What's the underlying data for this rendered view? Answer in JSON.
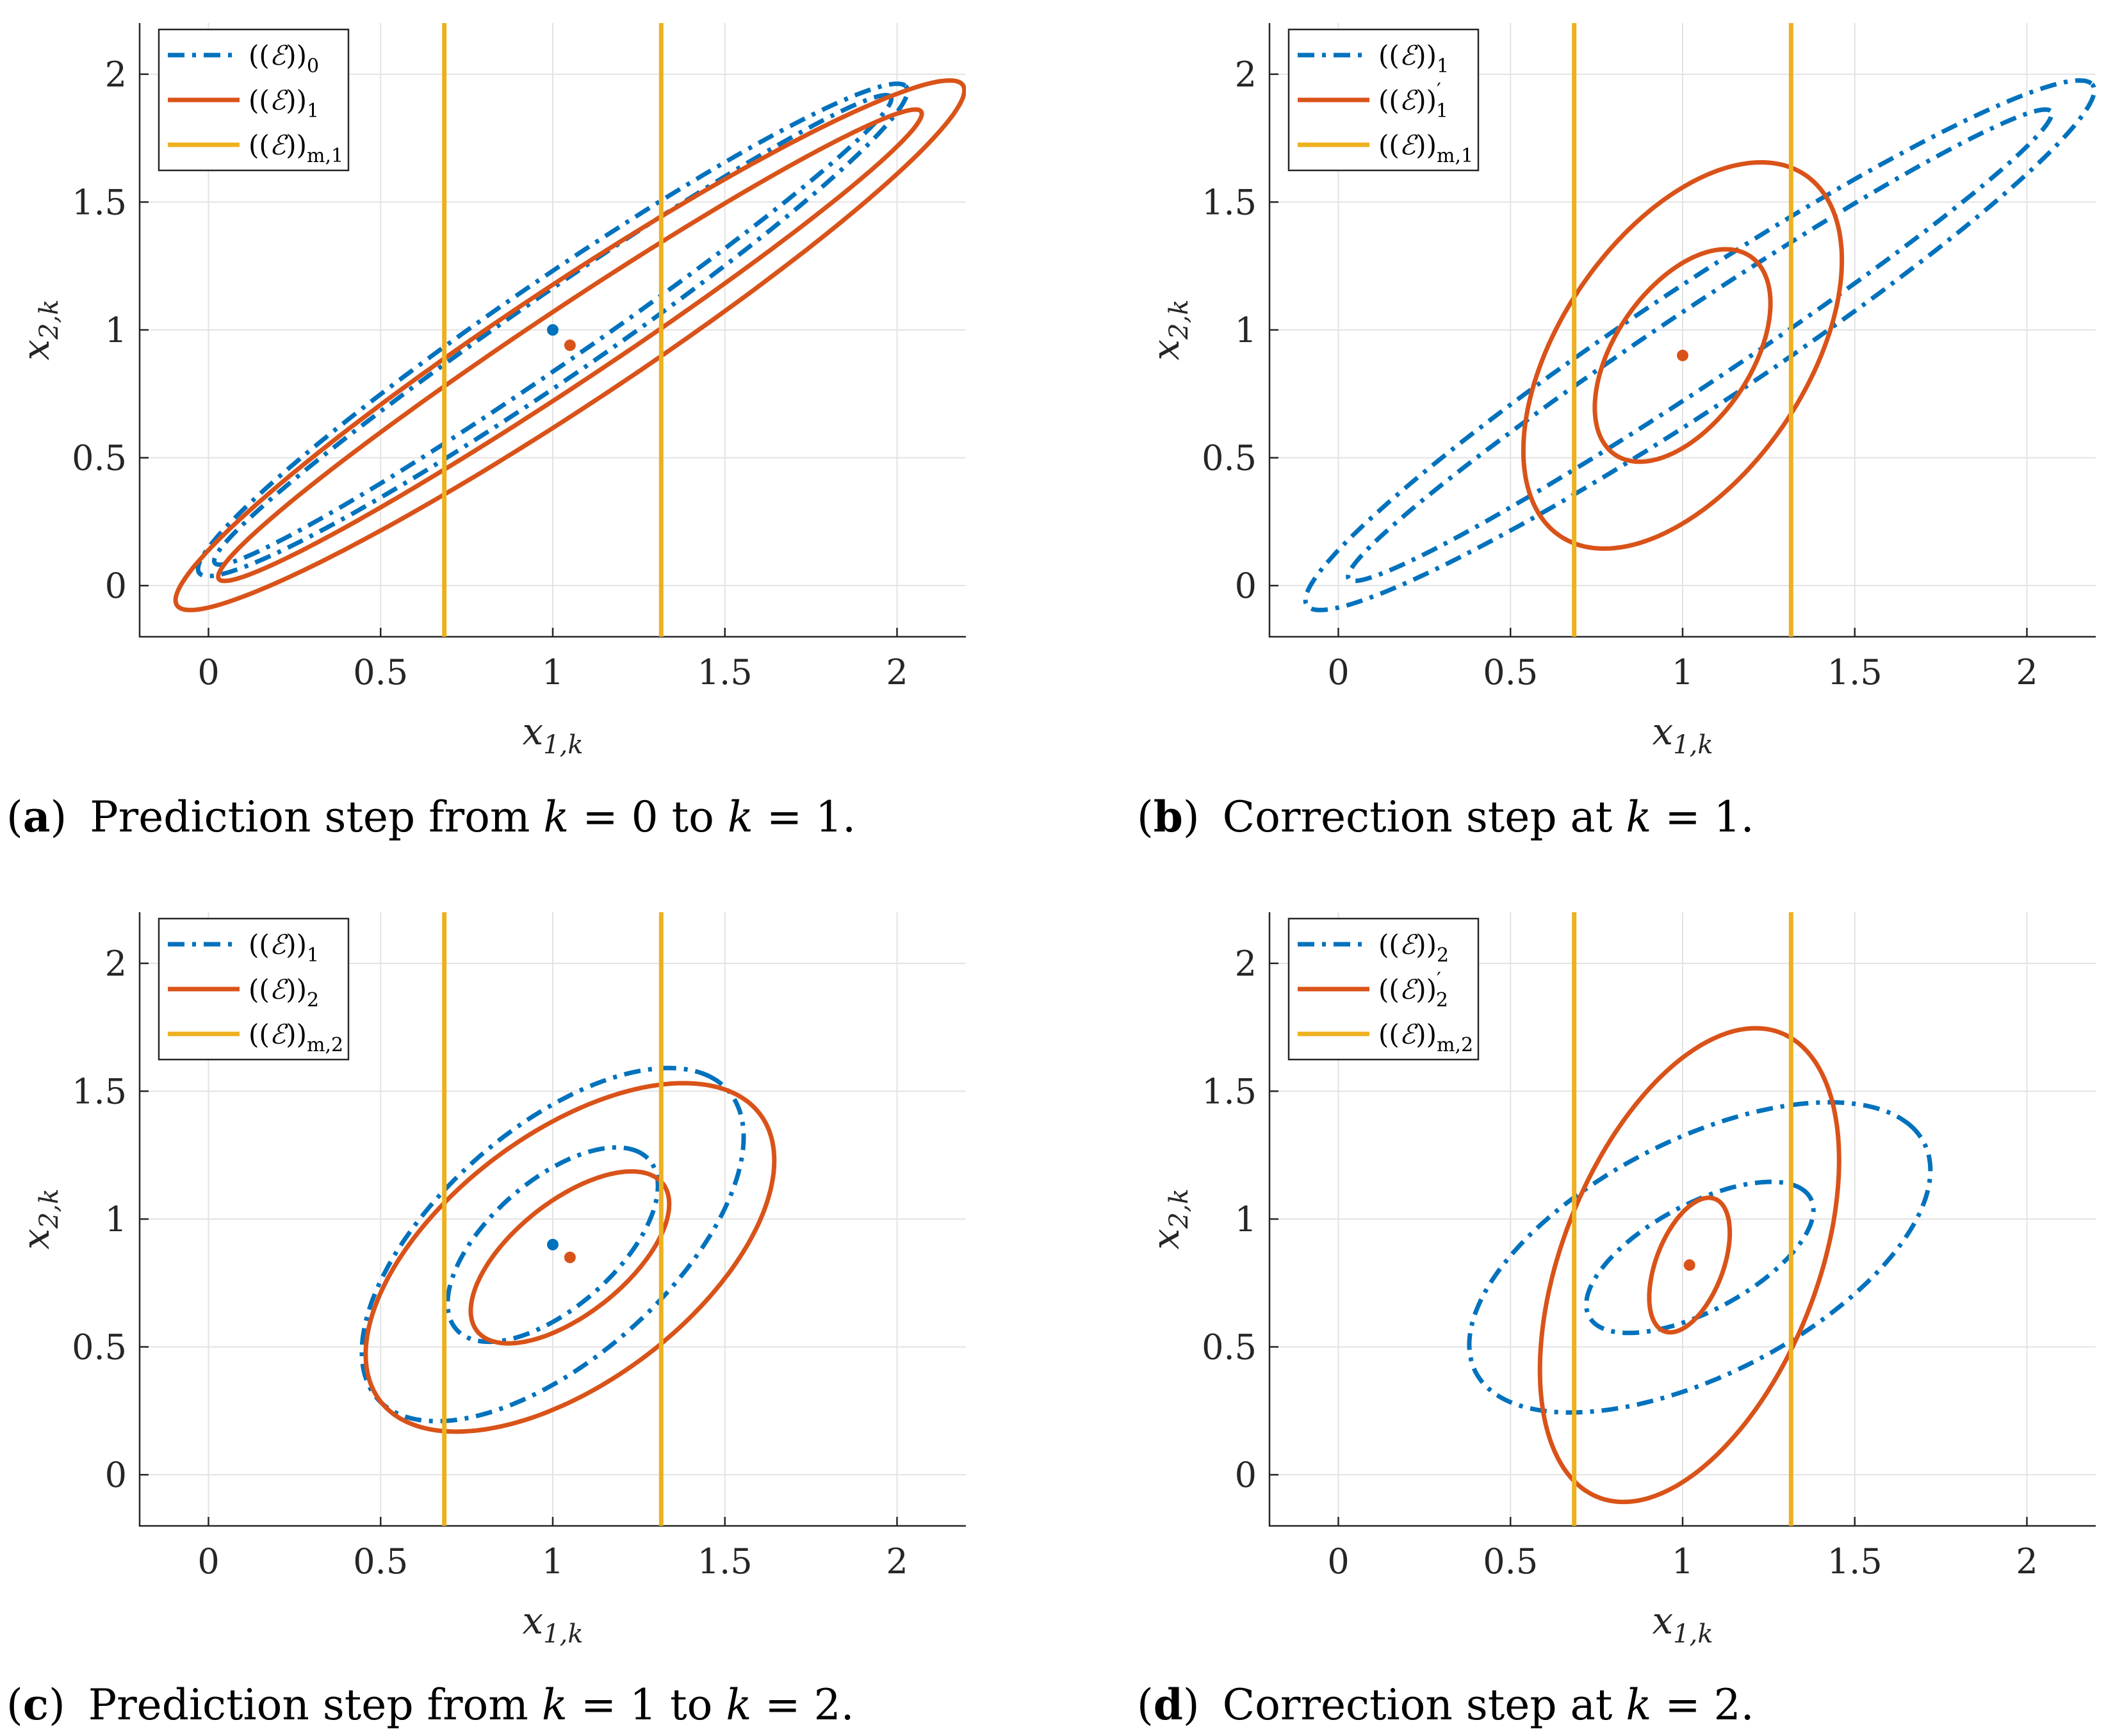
{
  "colors": {
    "blue": "#0072bd",
    "red": "#d95319",
    "yellow": "#edb120"
  },
  "chart_data": [
    {
      "type": "line",
      "panel": "a",
      "caption_label": "a",
      "caption_text": "Prediction step from k = 0 to k = 1.",
      "xlabel": "x1,k",
      "ylabel": "x2,k",
      "xlim": [
        -0.2,
        2.2
      ],
      "ylim": [
        -0.2,
        2.2
      ],
      "xticks": [
        "0",
        "0.5",
        "1",
        "1.5",
        "2"
      ],
      "yticks": [
        "0",
        "0.5",
        "1",
        "1.5",
        "2"
      ],
      "grid": true,
      "legend_position": "top-left",
      "legend": [
        "(E)0",
        "(E)1",
        "(E)m,1"
      ],
      "series": [
        {
          "name": "(E)0",
          "style": "dash-dot",
          "color": "blue",
          "kind": "ellipse",
          "center": [
            1.0,
            1.0
          ],
          "semi_axes": [
            1.4,
            0.17
          ],
          "angle_deg": 43
        },
        {
          "name": "(E)0",
          "style": "dash-dot",
          "color": "blue",
          "kind": "ellipse",
          "center": [
            1.0,
            1.0
          ],
          "semi_axes": [
            1.34,
            0.12
          ],
          "angle_deg": 43
        },
        {
          "name": "(E)1",
          "style": "solid",
          "color": "red",
          "kind": "ellipse",
          "center": [
            1.05,
            0.94
          ],
          "semi_axes": [
            1.53,
            0.21
          ],
          "angle_deg": 42
        },
        {
          "name": "(E)1",
          "style": "solid",
          "color": "red",
          "kind": "ellipse",
          "center": [
            1.05,
            0.94
          ],
          "semi_axes": [
            1.37,
            0.13
          ],
          "angle_deg": 42
        },
        {
          "name": "(E)m,1",
          "style": "solid",
          "color": "yellow",
          "kind": "vline",
          "x": 0.685
        },
        {
          "name": "(E)m,1",
          "style": "solid",
          "color": "yellow",
          "kind": "vline",
          "x": 1.315
        }
      ],
      "points": [
        {
          "x": 1.0,
          "y": 1.0,
          "color": "blue"
        },
        {
          "x": 1.05,
          "y": 0.94,
          "color": "red"
        }
      ]
    },
    {
      "type": "line",
      "panel": "b",
      "caption_label": "b",
      "caption_text": "Correction step at k = 1.",
      "xlabel": "x1,k",
      "ylabel": "x2,k",
      "xlim": [
        -0.2,
        2.2
      ],
      "ylim": [
        -0.2,
        2.2
      ],
      "xticks": [
        "0",
        "0.5",
        "1",
        "1.5",
        "2"
      ],
      "yticks": [
        "0",
        "0.5",
        "1",
        "1.5",
        "2"
      ],
      "grid": true,
      "legend_position": "top-left",
      "legend": [
        "(E)1",
        "(E)'1",
        "(E)m,1"
      ],
      "series": [
        {
          "name": "(E)1",
          "style": "dash-dot",
          "color": "blue",
          "kind": "ellipse",
          "center": [
            1.05,
            0.94
          ],
          "semi_axes": [
            1.53,
            0.21
          ],
          "angle_deg": 42
        },
        {
          "name": "(E)1",
          "style": "dash-dot",
          "color": "blue",
          "kind": "ellipse",
          "center": [
            1.05,
            0.94
          ],
          "semi_axes": [
            1.37,
            0.13
          ],
          "angle_deg": 42
        },
        {
          "name": "(E)'1",
          "style": "solid",
          "color": "red",
          "kind": "ellipse",
          "center": [
            1.0,
            0.9
          ],
          "semi_axes": [
            0.8,
            0.38
          ],
          "angle_deg": 68
        },
        {
          "name": "(E)'1",
          "style": "solid",
          "color": "red",
          "kind": "ellipse",
          "center": [
            1.0,
            0.9
          ],
          "semi_axes": [
            0.44,
            0.21
          ],
          "angle_deg": 68
        },
        {
          "name": "(E)m,1",
          "style": "solid",
          "color": "yellow",
          "kind": "vline",
          "x": 0.685
        },
        {
          "name": "(E)m,1",
          "style": "solid",
          "color": "yellow",
          "kind": "vline",
          "x": 1.315
        }
      ],
      "points": [
        {
          "x": 1.0,
          "y": 0.9,
          "color": "red"
        }
      ]
    },
    {
      "type": "line",
      "panel": "c",
      "caption_label": "c",
      "caption_text": "Prediction step from k = 1 to k = 2.",
      "xlabel": "x1,k",
      "ylabel": "x2,k",
      "xlim": [
        -0.2,
        2.2
      ],
      "ylim": [
        -0.2,
        2.2
      ],
      "xticks": [
        "0",
        "0.5",
        "1",
        "1.5",
        "2"
      ],
      "yticks": [
        "0",
        "0.5",
        "1",
        "1.5",
        "2"
      ],
      "grid": true,
      "legend_position": "top-left",
      "legend": [
        "(E)1",
        "(E)2",
        "(E)m,2"
      ],
      "series": [
        {
          "name": "(E)1",
          "style": "dash-dot",
          "color": "blue",
          "kind": "ellipse",
          "center": [
            1.0,
            0.9
          ],
          "semi_axes": [
            0.8,
            0.38
          ],
          "angle_deg": 55
        },
        {
          "name": "(E)1",
          "style": "dash-dot",
          "color": "blue",
          "kind": "ellipse",
          "center": [
            1.0,
            0.9
          ],
          "semi_axes": [
            0.44,
            0.21
          ],
          "angle_deg": 55
        },
        {
          "name": "(E)2",
          "style": "solid",
          "color": "red",
          "kind": "ellipse",
          "center": [
            1.05,
            0.85
          ],
          "semi_axes": [
            0.8,
            0.42
          ],
          "angle_deg": 52
        },
        {
          "name": "(E)2",
          "style": "solid",
          "color": "red",
          "kind": "ellipse",
          "center": [
            1.05,
            0.85
          ],
          "semi_axes": [
            0.4,
            0.19
          ],
          "angle_deg": 52
        },
        {
          "name": "(E)m,2",
          "style": "solid",
          "color": "yellow",
          "kind": "vline",
          "x": 0.685
        },
        {
          "name": "(E)m,2",
          "style": "solid",
          "color": "yellow",
          "kind": "vline",
          "x": 1.315
        }
      ],
      "points": [
        {
          "x": 1.0,
          "y": 0.9,
          "color": "blue"
        },
        {
          "x": 1.05,
          "y": 0.85,
          "color": "red"
        }
      ]
    },
    {
      "type": "line",
      "panel": "d",
      "caption_label": "d",
      "caption_text": "Correction step at k = 2.",
      "xlabel": "x1,k",
      "ylabel": "x2,k",
      "xlim": [
        -0.2,
        2.2
      ],
      "ylim": [
        -0.2,
        2.2
      ],
      "xticks": [
        "0",
        "0.5",
        "1",
        "1.5",
        "2"
      ],
      "yticks": [
        "0",
        "0.5",
        "1",
        "1.5",
        "2"
      ],
      "grid": true,
      "legend_position": "top-left",
      "legend": [
        "(E)2",
        "(E)'2",
        "(E)m,2"
      ],
      "series": [
        {
          "name": "(E)2",
          "style": "dash-dot",
          "color": "blue",
          "kind": "ellipse",
          "center": [
            1.05,
            0.85
          ],
          "semi_axes": [
            0.8,
            0.42
          ],
          "angle_deg": 40
        },
        {
          "name": "(E)2",
          "style": "dash-dot",
          "color": "blue",
          "kind": "ellipse",
          "center": [
            1.05,
            0.85
          ],
          "semi_axes": [
            0.4,
            0.19
          ],
          "angle_deg": 40
        },
        {
          "name": "(E)'2",
          "style": "solid",
          "color": "red",
          "kind": "ellipse",
          "center": [
            1.02,
            0.82
          ],
          "semi_axes": [
            0.95,
            0.38
          ],
          "angle_deg": 76
        },
        {
          "name": "(E)'2",
          "style": "solid",
          "color": "red",
          "kind": "ellipse",
          "center": [
            1.02,
            0.82
          ],
          "semi_axes": [
            0.27,
            0.1
          ],
          "angle_deg": 76
        },
        {
          "name": "(E)m,2",
          "style": "solid",
          "color": "yellow",
          "kind": "vline",
          "x": 0.685
        },
        {
          "name": "(E)m,2",
          "style": "solid",
          "color": "yellow",
          "kind": "vline",
          "x": 1.315
        }
      ],
      "points": [
        {
          "x": 1.02,
          "y": 0.82,
          "color": "red"
        }
      ]
    }
  ]
}
